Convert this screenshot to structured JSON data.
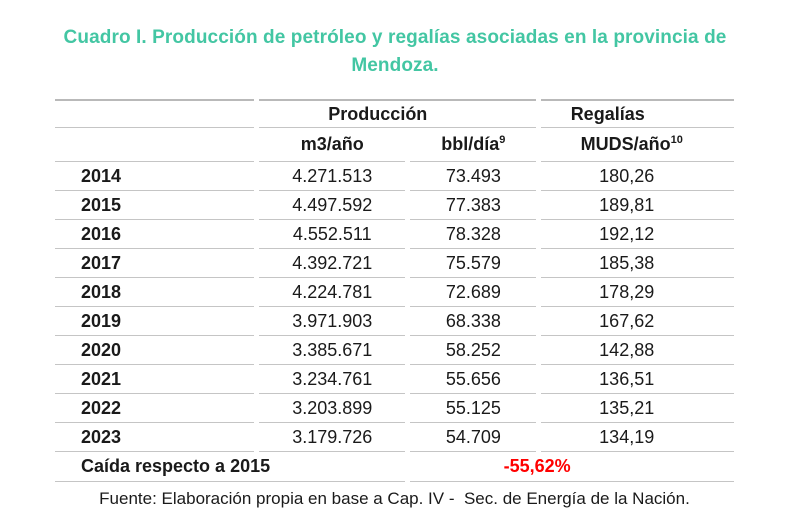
{
  "page": {
    "title_line1": "Cuadro I. Producción de petróleo y regalías asociadas en la provincia de",
    "title_line2": "Mendoza.",
    "source_note": "Fuente: Elaboración propia en base a Cap. IV -  Sec. de Energía de la Nación."
  },
  "table": {
    "group_headers": {
      "produccion": "Producción",
      "regalias": "Regalías"
    },
    "column_headers": {
      "m3": "m3/año",
      "bbl": "bbl/día",
      "bbl_footnote": "9",
      "muds": "MUDS/año",
      "muds_footnote": "10"
    },
    "rows": [
      {
        "year": "2014",
        "m3_ano": "4.271.513",
        "bbl_dia": "73.493",
        "muds_ano": "180,26"
      },
      {
        "year": "2015",
        "m3_ano": "4.497.592",
        "bbl_dia": "77.383",
        "muds_ano": "189,81"
      },
      {
        "year": "2016",
        "m3_ano": "4.552.511",
        "bbl_dia": "78.328",
        "muds_ano": "192,12"
      },
      {
        "year": "2017",
        "m3_ano": "4.392.721",
        "bbl_dia": "75.579",
        "muds_ano": "185,38"
      },
      {
        "year": "2018",
        "m3_ano": "4.224.781",
        "bbl_dia": "72.689",
        "muds_ano": "178,29"
      },
      {
        "year": "2019",
        "m3_ano": "3.971.903",
        "bbl_dia": "68.338",
        "muds_ano": "167,62"
      },
      {
        "year": "2020",
        "m3_ano": "3.385.671",
        "bbl_dia": "58.252",
        "muds_ano": "142,88"
      },
      {
        "year": "2021",
        "m3_ano": "3.234.761",
        "bbl_dia": "55.656",
        "muds_ano": "136,51"
      },
      {
        "year": "2022",
        "m3_ano": "3.203.899",
        "bbl_dia": "55.125",
        "muds_ano": "135,21"
      },
      {
        "year": "2023",
        "m3_ano": "3.179.726",
        "bbl_dia": "54.709",
        "muds_ano": "134,19"
      }
    ],
    "summary": {
      "label": "Caída respecto a 2015",
      "value": "-55,62%"
    }
  },
  "colors": {
    "accent_teal": "#43c6a3",
    "negative_red": "#ff0000",
    "border_gray": "#c5c5c5"
  }
}
